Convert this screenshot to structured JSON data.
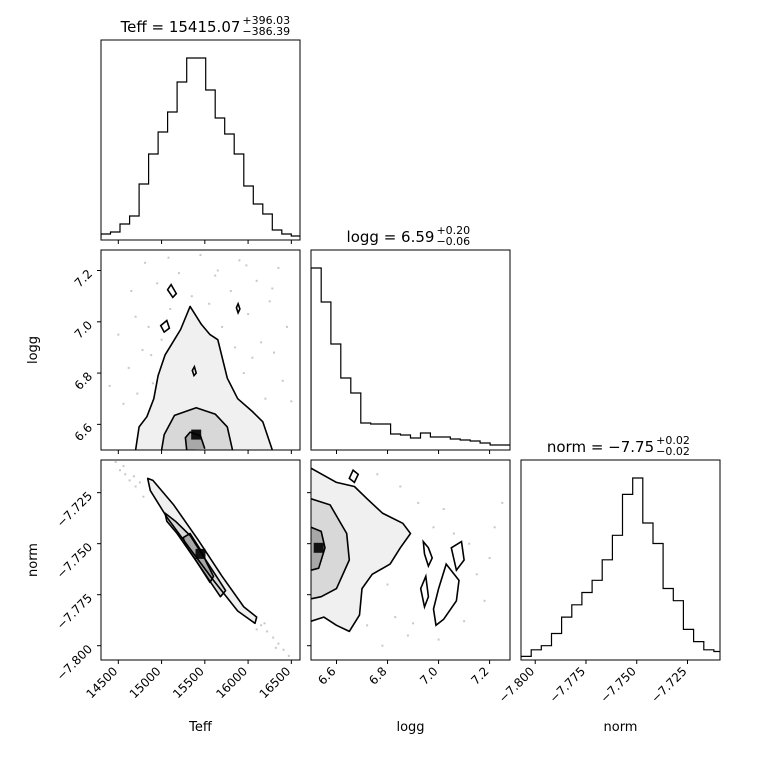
{
  "chart_data": {
    "type": "corner",
    "params": [
      {
        "key": "teff",
        "label": "Teff",
        "title": "Teff",
        "median": "15415.07",
        "err_plus": "+396.03",
        "err_minus": "−386.39",
        "range": [
          14300,
          16600
        ],
        "ticks": [
          14500,
          15000,
          15500,
          16000,
          16500
        ],
        "tick_labels": [
          "14500",
          "15000",
          "15500",
          "16000",
          "16500"
        ]
      },
      {
        "key": "logg",
        "label": "logg",
        "title": "logg",
        "median": "6.59",
        "err_plus": "+0.20",
        "err_minus": "−0.06",
        "range": [
          6.5,
          7.28
        ],
        "ticks": [
          6.6,
          6.8,
          7.0,
          7.2
        ],
        "tick_labels": [
          "6.6",
          "6.8",
          "7.0",
          "7.2"
        ]
      },
      {
        "key": "norm",
        "label": "norm",
        "title": "norm",
        "median": "−7.75",
        "err_plus": "+0.02",
        "err_minus": "−0.02",
        "range": [
          -7.807,
          -7.709
        ],
        "ticks": [
          -7.8,
          -7.775,
          -7.75,
          -7.725
        ],
        "tick_labels": [
          "−7.800",
          "−7.775",
          "−7.750",
          "−7.725"
        ]
      }
    ],
    "histograms": [
      {
        "param": "teff",
        "bin_edges": [
          14300,
          14410,
          14520,
          14630,
          14740,
          14850,
          14960,
          15070,
          15180,
          15290,
          15400,
          15510,
          15620,
          15730,
          15840,
          15950,
          16060,
          16170,
          16280,
          16390,
          16500,
          16600
        ],
        "counts": [
          2,
          3,
          7,
          11,
          27,
          42,
          53,
          63,
          78,
          90,
          90,
          74,
          60,
          52,
          42,
          26,
          17,
          12,
          4,
          2,
          1
        ]
      },
      {
        "param": "logg",
        "bin_edges": [
          6.5,
          6.54,
          6.578,
          6.617,
          6.656,
          6.695,
          6.734,
          6.773,
          6.812,
          6.851,
          6.89,
          6.929,
          6.968,
          7.007,
          7.046,
          7.085,
          7.124,
          7.163,
          7.202,
          7.241,
          7.28
        ],
        "counts": [
          180,
          146,
          104,
          70,
          55,
          25,
          24,
          24,
          14,
          13,
          10,
          15,
          11,
          11,
          9,
          8,
          7,
          5,
          3,
          3
        ]
      },
      {
        "param": "norm",
        "bin_edges": [
          -7.807,
          -7.802,
          -7.797,
          -7.792,
          -7.787,
          -7.782,
          -7.777,
          -7.772,
          -7.767,
          -7.762,
          -7.757,
          -7.752,
          -7.747,
          -7.742,
          -7.737,
          -7.732,
          -7.727,
          -7.722,
          -7.717,
          -7.712,
          -7.709
        ],
        "counts": [
          2,
          10,
          15,
          30,
          50,
          65,
          80,
          95,
          120,
          150,
          200,
          220,
          165,
          140,
          85,
          70,
          35,
          20,
          10,
          8
        ]
      }
    ],
    "joint": [
      {
        "x": "teff",
        "y": "logg",
        "peak": [
          15400,
          6.56
        ],
        "contours": [
          [
            [
              15290,
              6.5
            ],
            [
              15275,
              6.548
            ],
            [
              15330,
              6.57
            ],
            [
              15450,
              6.555
            ],
            [
              15500,
              6.505
            ]
          ],
          [
            [
              15000,
              6.5
            ],
            [
              15030,
              6.56
            ],
            [
              15150,
              6.635
            ],
            [
              15400,
              6.665
            ],
            [
              15620,
              6.64
            ],
            [
              15760,
              6.59
            ],
            [
              15820,
              6.5
            ]
          ],
          [
            [
              14700,
              6.5
            ],
            [
              14740,
              6.59
            ],
            [
              14830,
              6.63
            ],
            [
              14910,
              6.7
            ],
            [
              14960,
              6.79
            ],
            [
              15040,
              6.87
            ],
            [
              15130,
              6.92
            ],
            [
              15220,
              6.97
            ],
            [
              15330,
              7.06
            ],
            [
              15460,
              6.99
            ],
            [
              15560,
              6.95
            ],
            [
              15650,
              6.93
            ],
            [
              15760,
              6.78
            ],
            [
              15880,
              6.7
            ],
            [
              16050,
              6.65
            ],
            [
              16170,
              6.61
            ],
            [
              16250,
              6.53
            ],
            [
              16280,
              6.5
            ]
          ]
        ],
        "islands": [
          [
            [
              15070,
              7.125
            ],
            [
              15110,
              7.145
            ],
            [
              15170,
              7.11
            ],
            [
              15130,
              7.095
            ]
          ],
          [
            [
              14990,
              6.985
            ],
            [
              15060,
              7.005
            ],
            [
              15090,
              6.975
            ],
            [
              15030,
              6.96
            ]
          ],
          [
            [
              15865,
              7.055
            ],
            [
              15885,
              7.07
            ],
            [
              15905,
              7.05
            ],
            [
              15885,
              7.035
            ]
          ],
          [
            [
              15355,
              6.81
            ],
            [
              15380,
              6.825
            ],
            [
              15400,
              6.8
            ],
            [
              15375,
              6.79
            ]
          ]
        ],
        "scatter": [
          [
            14400,
            6.75
          ],
          [
            14500,
            6.95
          ],
          [
            14560,
            6.68
          ],
          [
            14620,
            6.82
          ],
          [
            14700,
            7.02
          ],
          [
            14720,
            6.72
          ],
          [
            14780,
            6.89
          ],
          [
            14810,
            7.23
          ],
          [
            14850,
            6.98
          ],
          [
            14900,
            6.76
          ],
          [
            14950,
            7.15
          ],
          [
            15000,
            6.93
          ],
          [
            15050,
            6.71
          ],
          [
            15100,
            7.05
          ],
          [
            15150,
            6.84
          ],
          [
            15200,
            7.19
          ],
          [
            15250,
            6.96
          ],
          [
            15300,
            6.74
          ],
          [
            15350,
            7.1
          ],
          [
            15400,
            6.92
          ],
          [
            15450,
            7.26
          ],
          [
            15500,
            6.82
          ],
          [
            15550,
            7.07
          ],
          [
            15600,
            6.88
          ],
          [
            15650,
            7.2
          ],
          [
            15700,
            6.98
          ],
          [
            15750,
            6.73
          ],
          [
            15800,
            7.12
          ],
          [
            15850,
            6.9
          ],
          [
            15900,
            7.24
          ],
          [
            15950,
            6.8
          ],
          [
            16000,
            7.03
          ],
          [
            16050,
            6.86
          ],
          [
            16100,
            7.16
          ],
          [
            16150,
            6.92
          ],
          [
            16200,
            6.7
          ],
          [
            16250,
            7.08
          ],
          [
            16300,
            6.88
          ],
          [
            16350,
            7.21
          ],
          [
            16400,
            6.77
          ],
          [
            16450,
            6.98
          ],
          [
            16500,
            6.69
          ],
          [
            14650,
            7.12
          ],
          [
            15080,
            7.25
          ],
          [
            15620,
            7.18
          ],
          [
            15980,
            7.22
          ],
          [
            16280,
            7.13
          ],
          [
            14880,
            6.87
          ]
        ]
      },
      {
        "x": "teff",
        "y": "norm",
        "peak": [
          15450,
          -7.755
        ],
        "contours": [
          [
            [
              15250,
              -7.747
            ],
            [
              15330,
              -7.745
            ],
            [
              15450,
              -7.753
            ],
            [
              15530,
              -7.76
            ],
            [
              15600,
              -7.766
            ],
            [
              15560,
              -7.769
            ],
            [
              15470,
              -7.763
            ],
            [
              15380,
              -7.757
            ],
            [
              15280,
              -7.751
            ]
          ],
          [
            [
              15040,
              -7.735
            ],
            [
              15160,
              -7.739
            ],
            [
              15330,
              -7.746
            ],
            [
              15480,
              -7.756
            ],
            [
              15650,
              -7.767
            ],
            [
              15740,
              -7.773
            ],
            [
              15680,
              -7.776
            ],
            [
              15520,
              -7.766
            ],
            [
              15360,
              -7.756
            ],
            [
              15180,
              -7.745
            ],
            [
              15060,
              -7.739
            ]
          ],
          [
            [
              14840,
              -7.718
            ],
            [
              14900,
              -7.719
            ],
            [
              15140,
              -7.731
            ],
            [
              15420,
              -7.748
            ],
            [
              15700,
              -7.766
            ],
            [
              15950,
              -7.781
            ],
            [
              16100,
              -7.786
            ],
            [
              16080,
              -7.789
            ],
            [
              15880,
              -7.783
            ],
            [
              15600,
              -7.768
            ],
            [
              15320,
              -7.752
            ],
            [
              15060,
              -7.737
            ],
            [
              14870,
              -7.724
            ]
          ]
        ],
        "scatter": [
          [
            14470,
            -7.71
          ],
          [
            14520,
            -7.714
          ],
          [
            14580,
            -7.716
          ],
          [
            14630,
            -7.719
          ],
          [
            14700,
            -7.722
          ],
          [
            14750,
            -7.72
          ],
          [
            14790,
            -7.727
          ],
          [
            16150,
            -7.79
          ],
          [
            16220,
            -7.793
          ],
          [
            16290,
            -7.796
          ],
          [
            16350,
            -7.799
          ],
          [
            16410,
            -7.802
          ],
          [
            16470,
            -7.805
          ],
          [
            16100,
            -7.792
          ],
          [
            16190,
            -7.789
          ],
          [
            14680,
            -7.717
          ],
          [
            14560,
            -7.712
          ],
          [
            16320,
            -7.801
          ]
        ]
      },
      {
        "x": "logg",
        "y": "norm",
        "peak": [
          6.53,
          -7.752
        ],
        "contours": [
          [
            [
              6.5,
              -7.742
            ],
            [
              6.54,
              -7.744
            ],
            [
              6.555,
              -7.752
            ],
            [
              6.53,
              -7.762
            ],
            [
              6.5,
              -7.763
            ]
          ],
          [
            [
              6.5,
              -7.728
            ],
            [
              6.575,
              -7.731
            ],
            [
              6.64,
              -7.745
            ],
            [
              6.65,
              -7.758
            ],
            [
              6.6,
              -7.772
            ],
            [
              6.54,
              -7.776
            ],
            [
              6.5,
              -7.777
            ]
          ],
          [
            [
              6.5,
              -7.713
            ],
            [
              6.6,
              -7.72
            ],
            [
              6.67,
              -7.722
            ],
            [
              6.72,
              -7.728
            ],
            [
              6.78,
              -7.735
            ],
            [
              6.86,
              -7.74
            ],
            [
              6.89,
              -7.745
            ],
            [
              6.85,
              -7.752
            ],
            [
              6.81,
              -7.76
            ],
            [
              6.74,
              -7.765
            ],
            [
              6.7,
              -7.772
            ],
            [
              6.69,
              -7.785
            ],
            [
              6.65,
              -7.793
            ],
            [
              6.6,
              -7.79
            ],
            [
              6.55,
              -7.786
            ],
            [
              6.5,
              -7.788
            ]
          ]
        ],
        "islands": [
          [
            [
              6.65,
              -7.718
            ],
            [
              6.67,
              -7.72
            ],
            [
              6.685,
              -7.716
            ],
            [
              6.665,
              -7.714
            ]
          ],
          [
            [
              6.94,
              -7.749
            ],
            [
              6.96,
              -7.752
            ],
            [
              6.975,
              -7.757
            ],
            [
              6.96,
              -7.761
            ],
            [
              6.945,
              -7.755
            ]
          ],
          [
            [
              7.05,
              -7.752
            ],
            [
              7.09,
              -7.749
            ],
            [
              7.1,
              -7.758
            ],
            [
              7.07,
              -7.763
            ]
          ],
          [
            [
              6.93,
              -7.772
            ],
            [
              6.95,
              -7.766
            ],
            [
              6.96,
              -7.776
            ],
            [
              6.945,
              -7.781
            ]
          ],
          [
            [
              7.03,
              -7.76
            ],
            [
              7.08,
              -7.768
            ],
            [
              7.07,
              -7.778
            ],
            [
              7.02,
              -7.787
            ],
            [
              6.99,
              -7.79
            ],
            [
              6.98,
              -7.782
            ],
            [
              7.0,
              -7.772
            ]
          ]
        ],
        "scatter": [
          [
            6.72,
            -7.79
          ],
          [
            6.78,
            -7.8
          ],
          [
            6.83,
            -7.786
          ],
          [
            6.88,
            -7.795
          ],
          [
            6.92,
            -7.73
          ],
          [
            6.98,
            -7.742
          ],
          [
            7.02,
            -7.733
          ],
          [
            7.06,
            -7.745
          ],
          [
            7.12,
            -7.75
          ],
          [
            7.15,
            -7.765
          ],
          [
            7.18,
            -7.778
          ],
          [
            7.22,
            -7.742
          ],
          [
            6.8,
            -7.77
          ],
          [
            6.9,
            -7.789
          ],
          [
            7.0,
            -7.797
          ],
          [
            7.1,
            -7.788
          ],
          [
            7.2,
            -7.757
          ],
          [
            6.76,
            -7.716
          ],
          [
            6.85,
            -7.722
          ],
          [
            7.25,
            -7.73
          ]
        ]
      }
    ]
  }
}
